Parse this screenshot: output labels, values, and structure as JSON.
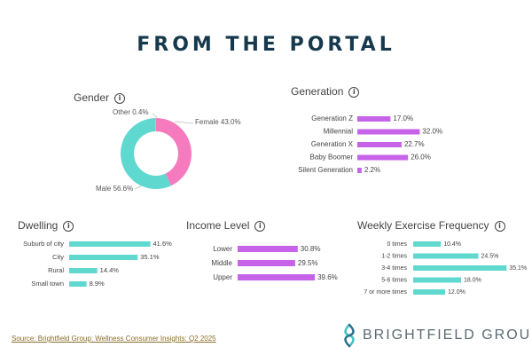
{
  "page_title": "FROM THE PORTAL",
  "source_text": "Source: Brightfield Group: Wellness Consumer Insights: Q2 2025",
  "logo_text": "BRIGHTFIELD GROUP",
  "info_glyph": "i",
  "colors": {
    "title": "#17394d",
    "teal": "#5fd8cf",
    "purple": "#c663e8",
    "pink": "#f57bbe",
    "other": "#f4a3b7"
  },
  "chart_data": [
    {
      "id": "gender",
      "type": "pie",
      "title": "Gender",
      "categories": [
        "Female",
        "Male",
        "Other"
      ],
      "values": [
        43.0,
        56.6,
        0.4
      ],
      "labels": [
        "Female 43.0%",
        "Male 56.6%",
        "Other 0.4%"
      ]
    },
    {
      "id": "generation",
      "type": "bar",
      "title": "Generation",
      "categories": [
        "Generation Z",
        "Millennial",
        "Generation X",
        "Baby Boomer",
        "Silent Generation"
      ],
      "values": [
        17.0,
        32.0,
        22.7,
        26.0,
        2.2
      ],
      "labels": [
        "17.0%",
        "32.0%",
        "22.7%",
        "26.0%",
        "2.2%"
      ]
    },
    {
      "id": "dwelling",
      "type": "bar",
      "title": "Dwelling",
      "categories": [
        "Suburb of city",
        "City",
        "Rural",
        "Small town"
      ],
      "values": [
        41.6,
        35.1,
        14.4,
        8.9
      ],
      "labels": [
        "41.6%",
        "35.1%",
        "14.4%",
        "8.9%"
      ]
    },
    {
      "id": "income",
      "type": "bar",
      "title": "Income Level",
      "categories": [
        "Lower",
        "Middle",
        "Upper"
      ],
      "values": [
        30.8,
        29.5,
        39.6
      ],
      "labels": [
        "30.8%",
        "29.5%",
        "39.6%"
      ]
    },
    {
      "id": "exercise",
      "type": "bar",
      "title": "Weekly Exercise Frequency",
      "categories": [
        "0 times",
        "1-2 times",
        "3-4 times",
        "5-6 times",
        "7 or more times"
      ],
      "values": [
        10.4,
        24.5,
        35.1,
        18.0,
        12.0
      ],
      "labels": [
        "10.4%",
        "24.5%",
        "35.1%",
        "18.0%",
        "12.0%"
      ]
    }
  ]
}
